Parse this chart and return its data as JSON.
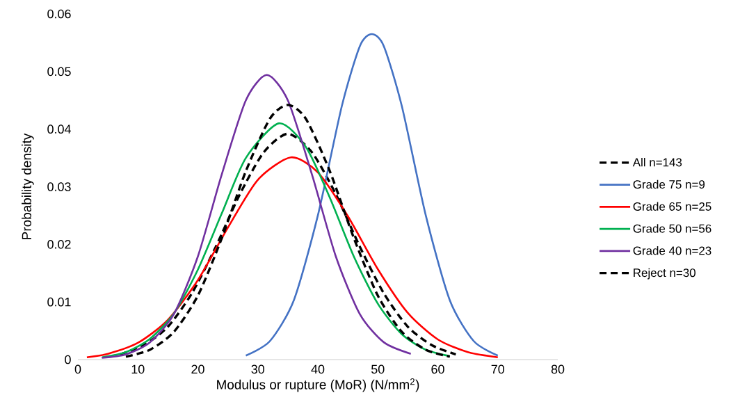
{
  "chart_data": {
    "type": "line",
    "xlabel": "Modulus or rupture (MoR) (N/mm$^{2}$)",
    "ylabel": "Probability density",
    "xlim": [
      0,
      80
    ],
    "ylim": [
      0,
      0.06
    ],
    "xticks": [
      0,
      10,
      20,
      30,
      40,
      50,
      60,
      70,
      80
    ],
    "yticks": [
      0,
      0.01,
      0.02,
      0.03,
      0.04,
      0.05,
      0.06
    ],
    "grid": false,
    "legend": "right",
    "series": [
      {
        "name": "All n=143",
        "color": "#000000",
        "line_style": "dashed",
        "x": [
          7,
          11,
          15,
          19,
          23,
          27,
          31,
          35,
          39,
          43,
          47,
          51,
          55,
          59,
          63
        ],
        "values": [
          0.0009,
          0.0025,
          0.0057,
          0.0115,
          0.0196,
          0.0287,
          0.036,
          0.0392,
          0.036,
          0.0287,
          0.0196,
          0.0115,
          0.0057,
          0.0025,
          0.0009
        ]
      },
      {
        "name": "Grade 75 n=9",
        "color": "#4472c4",
        "line_style": "solid",
        "x": [
          28,
          32,
          36,
          40,
          44,
          47,
          49,
          51,
          54,
          58,
          62,
          66,
          70
        ],
        "values": [
          0.0007,
          0.0032,
          0.0103,
          0.025,
          0.044,
          0.0544,
          0.0565,
          0.0544,
          0.044,
          0.025,
          0.0103,
          0.0032,
          0.0007
        ]
      },
      {
        "name": "Grade 65 n=25",
        "color": "#ff0000",
        "line_style": "solid",
        "x": [
          1.5,
          5,
          10,
          15,
          20,
          25,
          30,
          35.5,
          40,
          45,
          50,
          55,
          60,
          65,
          70
        ],
        "values": [
          0.0004,
          0.001,
          0.0029,
          0.0069,
          0.0138,
          0.0229,
          0.0312,
          0.0351,
          0.0325,
          0.0249,
          0.0157,
          0.0081,
          0.0035,
          0.0013,
          0.0004
        ]
      },
      {
        "name": "Grade 50 n=56",
        "color": "#00b050",
        "line_style": "solid",
        "x": [
          4,
          8,
          12,
          16,
          20,
          24,
          28,
          33.5,
          38,
          42,
          46,
          50,
          54,
          58,
          62
        ],
        "values": [
          0.0004,
          0.0013,
          0.0036,
          0.008,
          0.0156,
          0.0254,
          0.035,
          0.041,
          0.0369,
          0.0281,
          0.0179,
          0.0097,
          0.0044,
          0.0017,
          0.0006
        ]
      },
      {
        "name": "Grade 40 n=23",
        "color": "#7030a0",
        "line_style": "solid",
        "x": [
          4,
          8,
          12,
          16,
          20,
          24,
          28,
          31.5,
          35,
          39,
          43,
          47,
          51,
          55.5
        ],
        "values": [
          0.0003,
          0.0009,
          0.003,
          0.0079,
          0.0179,
          0.0322,
          0.045,
          0.0494,
          0.045,
          0.0322,
          0.0179,
          0.0079,
          0.003,
          0.001
        ]
      },
      {
        "name": "Reject n=30",
        "color": "#000000",
        "line_style": "dashed",
        "x": [
          8,
          12,
          16,
          20,
          24,
          28,
          32,
          35,
          38,
          42,
          46,
          50,
          54,
          58,
          62
        ],
        "values": [
          0.0005,
          0.0017,
          0.0048,
          0.0111,
          0.0211,
          0.0327,
          0.0418,
          0.0442,
          0.0418,
          0.0327,
          0.0211,
          0.0111,
          0.0048,
          0.0017,
          0.0005
        ]
      }
    ]
  }
}
